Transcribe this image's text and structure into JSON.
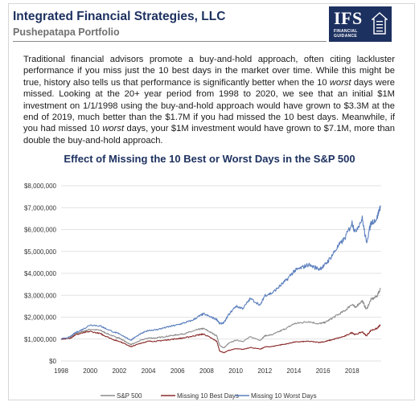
{
  "header": {
    "company": "Integrated Financial Strategies, LLC",
    "portfolio": "Pushepatapa Portfolio",
    "logo_text": "IFS",
    "logo_subtext": "FINANCIAL GUIDANCE"
  },
  "paragraph": {
    "part1": "Traditional financial advisors promote a buy-and-hold approach, often citing lackluster performance if you miss just the 10 best days in the market over time. While this might be true, history also tells us that performance is significantly better when the 10 ",
    "em1": "worst",
    "part2": " days were missed. Looking at the 20+ year period from 1998 to 2020, we see that an initial $1M investment on 1/1/1998 using the buy-and-hold approach would have grown to $3.3M at the end of 2019, much better than the $1.7M if you had missed the 10 best days. Meanwhile, if you had missed 10 ",
    "em2": "worst",
    "part3": " days, your $1M investment would have grown to $7.1M, more than double the buy-and-hold approach."
  },
  "colors": {
    "title": "#1d3160",
    "sp500": "#8c8c8c",
    "missing_best": "#8b2a2a",
    "missing_worst": "#5b7fbd",
    "grid": "#d9d9d9"
  },
  "chart_data": {
    "type": "line",
    "title": "Effect of Missing the 10 Best or Worst Days in the S&P 500",
    "xlabel": "",
    "ylabel": "",
    "xlim": [
      1998,
      2020
    ],
    "ylim": [
      0,
      8000000
    ],
    "x_ticks": [
      "1998",
      "2000",
      "2002",
      "2004",
      "2006",
      "2008",
      "2010",
      "2012",
      "2014",
      "2016",
      "2018"
    ],
    "y_ticks": [
      "$0",
      "$1,000,000",
      "$2,000,000",
      "$3,000,000",
      "$4,000,000",
      "$5,000,000",
      "$6,000,000",
      "$7,000,000",
      "$8,000,000"
    ],
    "legend_position": "bottom",
    "grid": "horizontal",
    "x": [
      1998.0,
      1998.6,
      1999.0,
      1999.5,
      2000.0,
      2000.7,
      2001.0,
      2001.7,
      2002.0,
      2002.5,
      2002.8,
      2003.0,
      2003.5,
      2004.0,
      2004.5,
      2005.0,
      2005.5,
      2006.0,
      2006.5,
      2007.0,
      2007.5,
      2007.8,
      2008.3,
      2008.7,
      2008.9,
      2009.2,
      2009.5,
      2010.0,
      2010.5,
      2011.0,
      2011.7,
      2012.0,
      2012.5,
      2013.0,
      2013.5,
      2014.0,
      2014.5,
      2015.0,
      2015.7,
      2016.1,
      2016.5,
      2017.0,
      2017.5,
      2018.0,
      2018.2,
      2018.7,
      2018.98,
      2019.3,
      2019.7,
      2019.95
    ],
    "series": [
      {
        "name": "S&P 500",
        "values": [
          1000000,
          1050000,
          1250000,
          1350000,
          1450000,
          1400000,
          1300000,
          1100000,
          1050000,
          850000,
          750000,
          800000,
          950000,
          1050000,
          1050000,
          1100000,
          1150000,
          1200000,
          1250000,
          1350000,
          1450000,
          1480000,
          1300000,
          1150000,
          700000,
          600000,
          800000,
          950000,
          900000,
          1100000,
          950000,
          1150000,
          1200000,
          1350000,
          1500000,
          1700000,
          1750000,
          1800000,
          1700000,
          1750000,
          1900000,
          2100000,
          2300000,
          2600000,
          2450000,
          2750000,
          2350000,
          2800000,
          2950000,
          3300000
        ]
      },
      {
        "name": "Missing 10 Best Days",
        "values": [
          1000000,
          1030000,
          1200000,
          1280000,
          1350000,
          1250000,
          1150000,
          950000,
          900000,
          750000,
          650000,
          700000,
          820000,
          900000,
          900000,
          940000,
          980000,
          1020000,
          1060000,
          1130000,
          1200000,
          1230000,
          1050000,
          900000,
          450000,
          380000,
          480000,
          560000,
          530000,
          620000,
          540000,
          640000,
          660000,
          730000,
          780000,
          860000,
          880000,
          900000,
          850000,
          880000,
          950000,
          1040000,
          1130000,
          1300000,
          1200000,
          1330000,
          1150000,
          1400000,
          1480000,
          1650000
        ]
      },
      {
        "name": "Missing 10 Worst Days",
        "values": [
          1000000,
          1100000,
          1300000,
          1450000,
          1650000,
          1600000,
          1500000,
          1300000,
          1250000,
          1050000,
          950000,
          1050000,
          1250000,
          1400000,
          1420000,
          1500000,
          1580000,
          1650000,
          1750000,
          1850000,
          2050000,
          2150000,
          2000000,
          1900000,
          1700000,
          1750000,
          2100000,
          2500000,
          2400000,
          2850000,
          2550000,
          3000000,
          3100000,
          3400000,
          3700000,
          4100000,
          4250000,
          4400000,
          4200000,
          4350000,
          4700000,
          5200000,
          5600000,
          6300000,
          5900000,
          6500000,
          5400000,
          6300000,
          6500000,
          7100000
        ]
      }
    ]
  }
}
